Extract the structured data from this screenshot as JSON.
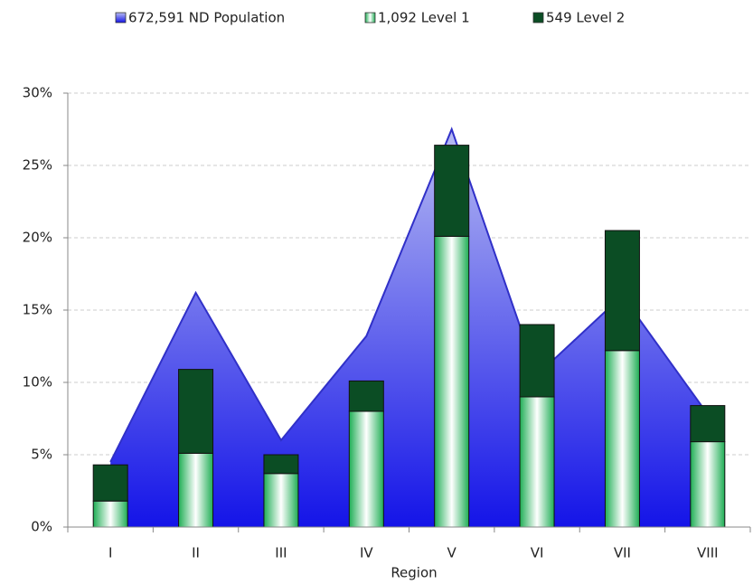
{
  "chart_data": {
    "type": "combo",
    "x_label": "Region",
    "categories": [
      "I",
      "II",
      "III",
      "IV",
      "V",
      "VI",
      "VII",
      "VIII"
    ],
    "ylim": [
      0,
      30
    ],
    "yticks": [
      {
        "value": 0,
        "label": "0%"
      },
      {
        "value": 5,
        "label": "5%"
      },
      {
        "value": 10,
        "label": "10%"
      },
      {
        "value": 15,
        "label": "15%"
      },
      {
        "value": 20,
        "label": "20%"
      },
      {
        "value": 25,
        "label": "25%"
      },
      {
        "value": 30,
        "label": "30%"
      }
    ],
    "grid": true,
    "legend": "top",
    "series": [
      {
        "name": "672,591 ND Population",
        "type": "area",
        "color": "#1414e8",
        "values": [
          4.5,
          16.2,
          6.0,
          13.2,
          27.5,
          10.5,
          16.0,
          7.8
        ]
      },
      {
        "name": "1,092 Level 1",
        "type": "bar",
        "stack": true,
        "color": "#1fae55",
        "values": [
          1.8,
          5.1,
          3.7,
          8.0,
          20.1,
          9.0,
          12.2,
          5.9
        ]
      },
      {
        "name": "549 Level 2",
        "type": "bar",
        "stack": true,
        "color": "#0b4d24",
        "values": [
          2.5,
          5.8,
          1.3,
          2.1,
          6.3,
          5.0,
          8.3,
          2.5
        ]
      }
    ]
  }
}
